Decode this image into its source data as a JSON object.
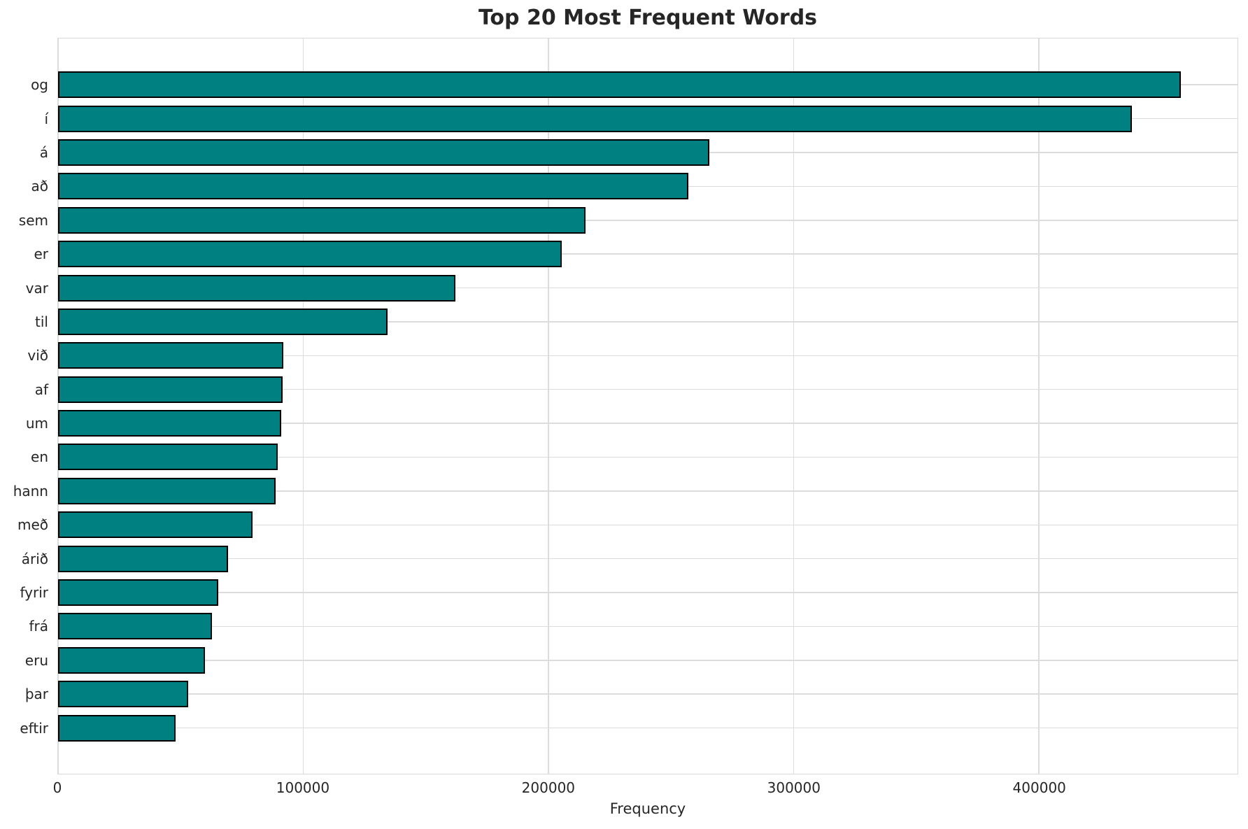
{
  "chart_data": {
    "type": "bar",
    "orientation": "horizontal",
    "title": "Top 20 Most Frequent Words",
    "xlabel": "Frequency",
    "ylabel": "",
    "categories": [
      "og",
      "í",
      "á",
      "að",
      "sem",
      "er",
      "var",
      "til",
      "við",
      "af",
      "um",
      "en",
      "hann",
      "með",
      "árið",
      "fyrir",
      "frá",
      "eru",
      "þar",
      "eftir"
    ],
    "values": [
      458000,
      438000,
      265500,
      257000,
      215000,
      205500,
      162000,
      134500,
      91800,
      91600,
      91000,
      89600,
      88700,
      79200,
      69200,
      65200,
      62900,
      60000,
      53200,
      47800
    ],
    "x_ticks": [
      0,
      100000,
      200000,
      300000,
      400000
    ],
    "x_tick_labels": [
      "0",
      "100000",
      "200000",
      "300000",
      "400000"
    ],
    "xlim": [
      0,
      481000
    ],
    "grid": true,
    "legend_position": "none",
    "colors": {
      "bar_fill": "#008080",
      "bar_edge": "#000000",
      "gridline": "#dcdcdc",
      "spine": "#d9d9d9",
      "text": "#262626"
    }
  }
}
